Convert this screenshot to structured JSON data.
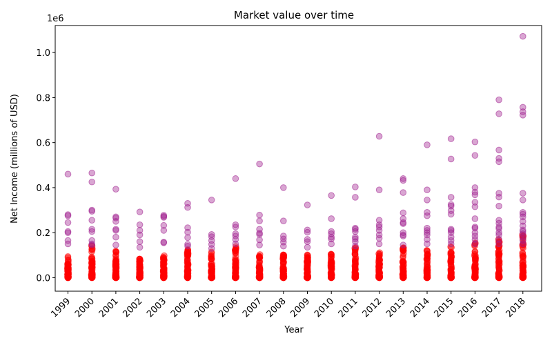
{
  "chart_data": {
    "type": "scatter",
    "title": "Market value over time",
    "xlabel": "Year",
    "ylabel": "Net Income (millions of USD)",
    "y_multiplier_label": "1e6",
    "ylim": [
      -60000,
      1120000
    ],
    "yticks": [
      0,
      200000,
      400000,
      600000,
      800000,
      1000000
    ],
    "ytick_labels": [
      "0.0",
      "0.2",
      "0.4",
      "0.6",
      "0.8",
      "1.0"
    ],
    "categories": [
      "1999",
      "2000",
      "2001",
      "2002",
      "2003",
      "2004",
      "2005",
      "2006",
      "2007",
      "2008",
      "2009",
      "2010",
      "2011",
      "2012",
      "2013",
      "2014",
      "2015",
      "2016",
      "2017",
      "2018"
    ],
    "grid": false,
    "colors": {
      "outlier": "#a0208f",
      "dense": "#ff0000"
    },
    "series": [
      {
        "values": [
          [
            1999,
            460000
          ],
          [
            1999,
            280000
          ],
          [
            1999,
            275000
          ],
          [
            1999,
            245000
          ],
          [
            1999,
            205000
          ],
          [
            1999,
            200000
          ],
          [
            1999,
            165000
          ],
          [
            1999,
            150000
          ],
          [
            2000,
            465000
          ],
          [
            2000,
            425000
          ],
          [
            2000,
            300000
          ],
          [
            2000,
            295000
          ],
          [
            2000,
            255000
          ],
          [
            2000,
            215000
          ],
          [
            2000,
            205000
          ],
          [
            2000,
            165000
          ],
          [
            2000,
            150000
          ],
          [
            2000,
            145000
          ],
          [
            2001,
            393000
          ],
          [
            2001,
            270000
          ],
          [
            2001,
            265000
          ],
          [
            2001,
            250000
          ],
          [
            2001,
            215000
          ],
          [
            2001,
            210000
          ],
          [
            2001,
            180000
          ],
          [
            2001,
            145000
          ],
          [
            2002,
            292000
          ],
          [
            2002,
            235000
          ],
          [
            2002,
            210000
          ],
          [
            2002,
            190000
          ],
          [
            2002,
            160000
          ],
          [
            2002,
            135000
          ],
          [
            2003,
            277000
          ],
          [
            2003,
            272000
          ],
          [
            2003,
            268000
          ],
          [
            2003,
            232000
          ],
          [
            2003,
            210000
          ],
          [
            2003,
            158000
          ],
          [
            2003,
            155000
          ],
          [
            2004,
            330000
          ],
          [
            2004,
            312000
          ],
          [
            2004,
            222000
          ],
          [
            2004,
            202000
          ],
          [
            2004,
            178000
          ],
          [
            2004,
            148000
          ],
          [
            2004,
            140000
          ],
          [
            2005,
            345000
          ],
          [
            2005,
            192000
          ],
          [
            2005,
            182000
          ],
          [
            2005,
            165000
          ],
          [
            2005,
            148000
          ],
          [
            2005,
            130000
          ],
          [
            2006,
            440000
          ],
          [
            2006,
            235000
          ],
          [
            2006,
            225000
          ],
          [
            2006,
            195000
          ],
          [
            2006,
            185000
          ],
          [
            2006,
            170000
          ],
          [
            2006,
            150000
          ],
          [
            2007,
            505000
          ],
          [
            2007,
            278000
          ],
          [
            2007,
            252000
          ],
          [
            2007,
            215000
          ],
          [
            2007,
            198000
          ],
          [
            2007,
            192000
          ],
          [
            2007,
            168000
          ],
          [
            2007,
            145000
          ],
          [
            2008,
            400000
          ],
          [
            2008,
            252000
          ],
          [
            2008,
            185000
          ],
          [
            2008,
            172000
          ],
          [
            2008,
            158000
          ],
          [
            2008,
            140000
          ],
          [
            2009,
            323000
          ],
          [
            2009,
            212000
          ],
          [
            2009,
            202000
          ],
          [
            2009,
            170000
          ],
          [
            2009,
            160000
          ],
          [
            2009,
            135000
          ],
          [
            2010,
            365000
          ],
          [
            2010,
            262000
          ],
          [
            2010,
            205000
          ],
          [
            2010,
            195000
          ],
          [
            2010,
            180000
          ],
          [
            2010,
            172000
          ],
          [
            2010,
            150000
          ],
          [
            2011,
            403000
          ],
          [
            2011,
            357000
          ],
          [
            2011,
            220000
          ],
          [
            2011,
            215000
          ],
          [
            2011,
            205000
          ],
          [
            2011,
            180000
          ],
          [
            2011,
            172000
          ],
          [
            2011,
            160000
          ],
          [
            2011,
            140000
          ],
          [
            2012,
            628000
          ],
          [
            2012,
            390000
          ],
          [
            2012,
            255000
          ],
          [
            2012,
            235000
          ],
          [
            2012,
            225000
          ],
          [
            2012,
            210000
          ],
          [
            2012,
            190000
          ],
          [
            2012,
            175000
          ],
          [
            2012,
            150000
          ],
          [
            2013,
            440000
          ],
          [
            2013,
            432000
          ],
          [
            2013,
            378000
          ],
          [
            2013,
            288000
          ],
          [
            2013,
            262000
          ],
          [
            2013,
            245000
          ],
          [
            2013,
            240000
          ],
          [
            2013,
            200000
          ],
          [
            2013,
            190000
          ],
          [
            2013,
            185000
          ],
          [
            2013,
            145000
          ],
          [
            2014,
            590000
          ],
          [
            2014,
            390000
          ],
          [
            2014,
            345000
          ],
          [
            2014,
            290000
          ],
          [
            2014,
            275000
          ],
          [
            2014,
            220000
          ],
          [
            2014,
            210000
          ],
          [
            2014,
            200000
          ],
          [
            2014,
            190000
          ],
          [
            2014,
            170000
          ],
          [
            2014,
            150000
          ],
          [
            2015,
            617000
          ],
          [
            2015,
            527000
          ],
          [
            2015,
            357000
          ],
          [
            2015,
            325000
          ],
          [
            2015,
            318000
          ],
          [
            2015,
            298000
          ],
          [
            2015,
            282000
          ],
          [
            2015,
            215000
          ],
          [
            2015,
            210000
          ],
          [
            2015,
            200000
          ],
          [
            2015,
            180000
          ],
          [
            2015,
            165000
          ],
          [
            2015,
            150000
          ],
          [
            2016,
            603000
          ],
          [
            2016,
            543000
          ],
          [
            2016,
            400000
          ],
          [
            2016,
            380000
          ],
          [
            2016,
            368000
          ],
          [
            2016,
            335000
          ],
          [
            2016,
            315000
          ],
          [
            2016,
            262000
          ],
          [
            2016,
            225000
          ],
          [
            2016,
            220000
          ],
          [
            2016,
            200000
          ],
          [
            2016,
            185000
          ],
          [
            2016,
            170000
          ],
          [
            2016,
            150000
          ],
          [
            2017,
            790000
          ],
          [
            2017,
            728000
          ],
          [
            2017,
            567000
          ],
          [
            2017,
            530000
          ],
          [
            2017,
            515000
          ],
          [
            2017,
            375000
          ],
          [
            2017,
            358000
          ],
          [
            2017,
            318000
          ],
          [
            2017,
            255000
          ],
          [
            2017,
            242000
          ],
          [
            2017,
            225000
          ],
          [
            2017,
            218000
          ],
          [
            2017,
            200000
          ],
          [
            2017,
            190000
          ],
          [
            2017,
            170000
          ],
          [
            2017,
            150000
          ],
          [
            2018,
            1072000
          ],
          [
            2018,
            757000
          ],
          [
            2018,
            737000
          ],
          [
            2018,
            722000
          ],
          [
            2018,
            375000
          ],
          [
            2018,
            345000
          ],
          [
            2018,
            290000
          ],
          [
            2018,
            282000
          ],
          [
            2018,
            270000
          ],
          [
            2018,
            250000
          ],
          [
            2018,
            230000
          ],
          [
            2018,
            212000
          ],
          [
            2018,
            205000
          ],
          [
            2018,
            195000
          ],
          [
            2018,
            180000
          ],
          [
            2018,
            165000
          ],
          [
            2018,
            150000
          ]
        ]
      }
    ],
    "dense_band": {
      "range": [
        0,
        150000
      ],
      "upper_by_year": [
        95000,
        150000,
        120000,
        90000,
        100000,
        130000,
        120000,
        140000,
        110000,
        110000,
        105000,
        105000,
        135000,
        120000,
        140000,
        125000,
        140000,
        160000,
        175000,
        200000
      ]
    }
  }
}
